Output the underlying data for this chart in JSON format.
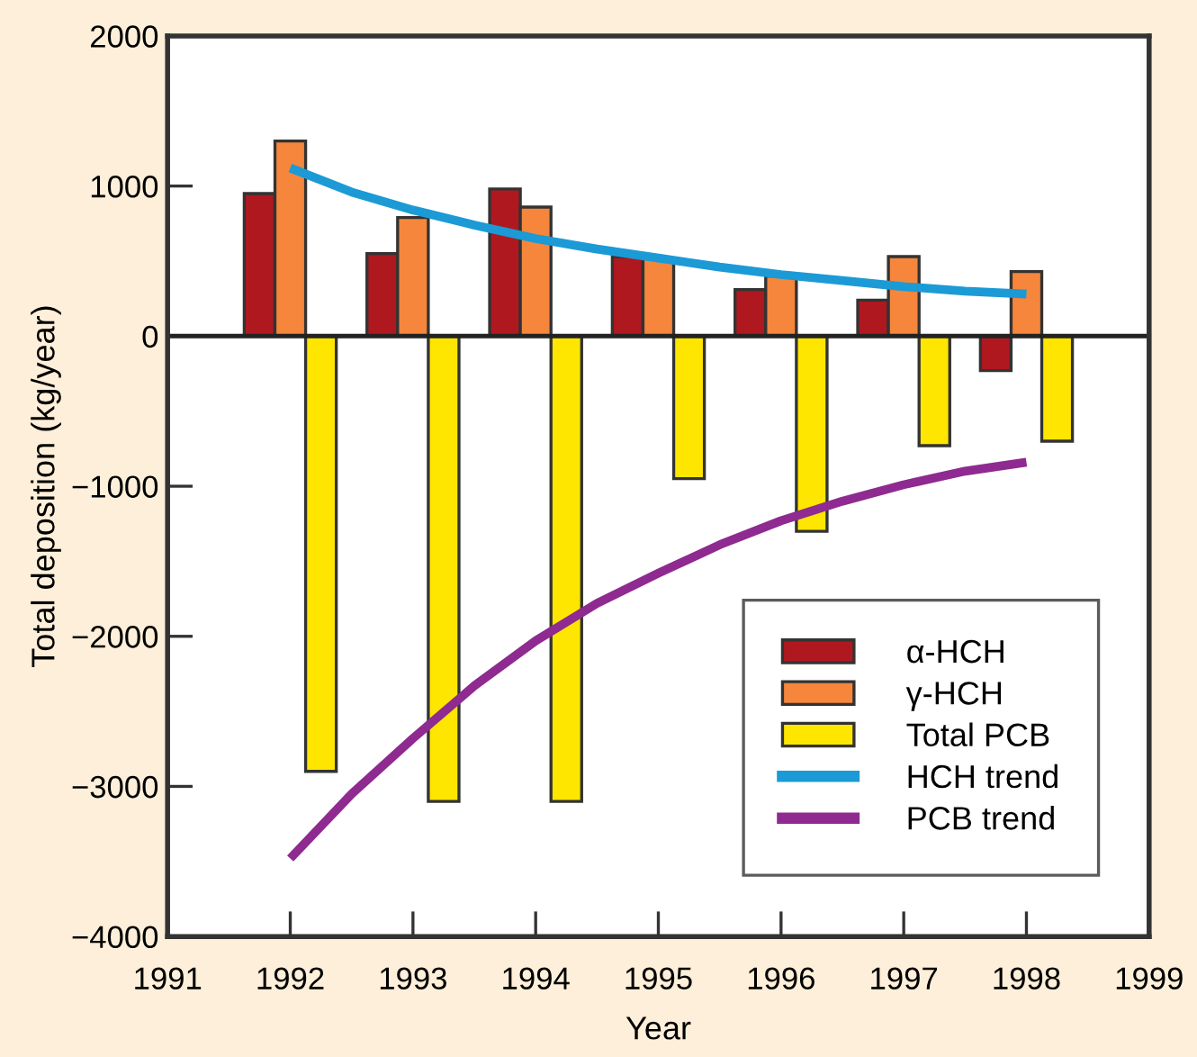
{
  "chart_data": {
    "type": "bar",
    "xlabel": "Year",
    "ylabel": "Total deposition (kg/year)",
    "xlim": [
      1991,
      1999
    ],
    "xticks": [
      1991,
      1992,
      1993,
      1994,
      1995,
      1996,
      1997,
      1998,
      1999
    ],
    "ylim": [
      -4000,
      2000
    ],
    "yticks": [
      -4000,
      -3000,
      -2000,
      -1000,
      0,
      1000,
      2000
    ],
    "x": [
      1992,
      1993,
      1994,
      1995,
      1996,
      1997,
      1998
    ],
    "series": [
      {
        "name": "α-HCH",
        "color": "#b01820",
        "values": [
          950,
          550,
          980,
          530,
          310,
          240,
          -230
        ]
      },
      {
        "name": "γ-HCH",
        "color": "#f5863c",
        "values": [
          1300,
          790,
          860,
          520,
          400,
          530,
          430
        ]
      },
      {
        "name": "Total PCB",
        "color": "#ffe600",
        "values": [
          -2900,
          -3100,
          -3100,
          -950,
          -1300,
          -730,
          -700
        ]
      },
      {
        "name": "HCH trend",
        "type": "line",
        "color": "#1b9ad6",
        "x": [
          1992,
          1992.5,
          1993,
          1993.5,
          1994,
          1994.5,
          1995,
          1995.5,
          1996,
          1996.5,
          1997,
          1997.5,
          1998
        ],
        "values": [
          1120,
          960,
          840,
          740,
          650,
          580,
          520,
          460,
          410,
          370,
          330,
          300,
          280
        ]
      },
      {
        "name": "PCB trend",
        "type": "line",
        "color": "#8e2a90",
        "x": [
          1992,
          1992.5,
          1993,
          1993.5,
          1994,
          1994.5,
          1995,
          1995.5,
          1996,
          1996.5,
          1997,
          1997.5,
          1998
        ],
        "values": [
          -3480,
          -3050,
          -2680,
          -2330,
          -2030,
          -1780,
          -1580,
          -1390,
          -1230,
          -1100,
          -990,
          -900,
          -840
        ]
      }
    ],
    "ref_lines": [
      {
        "axis": "y",
        "value": 0,
        "color": "#222222"
      }
    ],
    "grid": false,
    "legend": "bottom right",
    "marker": "none",
    "line_style": "solid"
  }
}
